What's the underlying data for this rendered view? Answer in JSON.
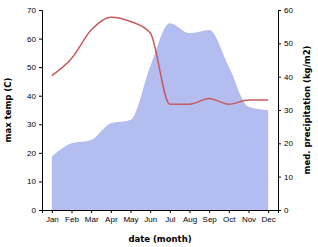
{
  "chart_data": {
    "type": "line",
    "x_label": "date (month)",
    "y_label": "max temp (C)",
    "y2_label": "med. precipitation (kg/m2)",
    "categories": [
      "Jan",
      "Feb",
      "Mar",
      "Apr",
      "May",
      "Jun",
      "Jul",
      "Aug",
      "Sep",
      "Oct",
      "Nov",
      "Dec"
    ],
    "series": [
      {
        "type": "area",
        "axis": "y2",
        "color": "#b3bdf0",
        "values": [
          16,
          20,
          21,
          26,
          27,
          43,
          56,
          53,
          54,
          43,
          31,
          30
        ]
      },
      {
        "type": "line",
        "color": "#c85a5a",
        "values": [
          47,
          53,
          63,
          67.5,
          66,
          62,
          37,
          37,
          39,
          37,
          38.5,
          38.5
        ]
      }
    ],
    "ylim": [
      0,
      70
    ],
    "yticks": [
      0,
      10,
      20,
      30,
      40,
      50,
      60,
      70
    ],
    "y2lim": [
      0,
      60
    ],
    "y2ticks": [
      0,
      10,
      20,
      30,
      40,
      50,
      60
    ]
  }
}
